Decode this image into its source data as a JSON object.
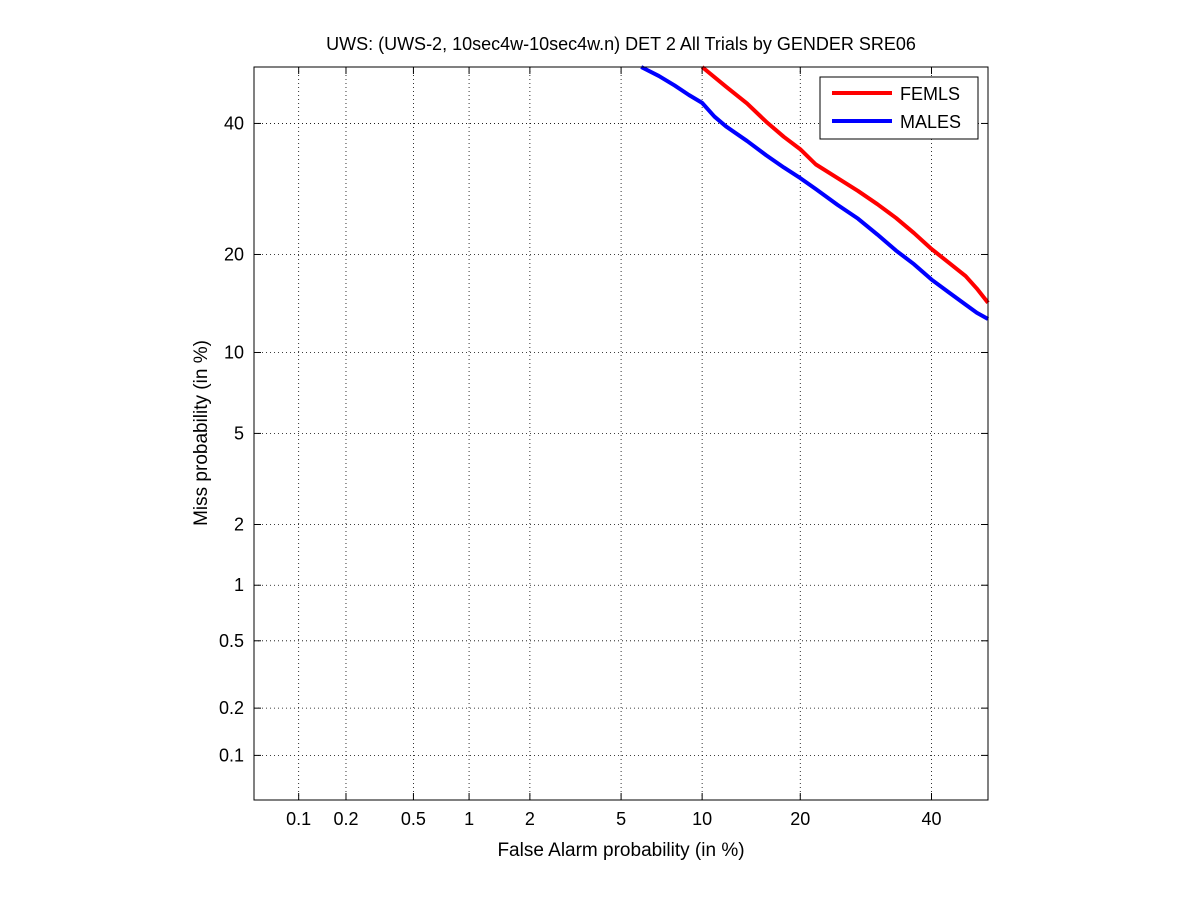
{
  "chart_data": {
    "type": "line",
    "title": "UWS: (UWS-2, 10sec4w-10sec4w.n) DET 2 All Trials by GENDER SRE06",
    "xlabel": "False Alarm probability (in %)",
    "ylabel": "Miss probability (in %)",
    "x_scale": "normal-deviate",
    "y_scale": "normal-deviate",
    "xlim": [
      0.05,
      50
    ],
    "ylim": [
      0.05,
      50
    ],
    "x_ticks": [
      0.1,
      0.2,
      0.5,
      1,
      2,
      5,
      10,
      20,
      40
    ],
    "x_tick_labels": [
      "0.1",
      "0.2",
      "0.5",
      "1",
      "2",
      "5",
      "10",
      "20",
      "40"
    ],
    "y_ticks": [
      0.1,
      0.2,
      0.5,
      1,
      2,
      5,
      10,
      20,
      40
    ],
    "y_tick_labels": [
      "0.1",
      "0.2",
      "0.5",
      "1",
      "2",
      "5",
      "10",
      "20",
      "40"
    ],
    "grid": true,
    "legend_position": "top-right",
    "series": [
      {
        "name": "FEMLS",
        "color": "#ff0000",
        "x": [
          10,
          12,
          14,
          16,
          18,
          20,
          22,
          25,
          28,
          31,
          34,
          37,
          40,
          43,
          46,
          48,
          50
        ],
        "y": [
          50,
          46.5,
          43.5,
          40.3,
          37.7,
          35.6,
          33.1,
          30.9,
          28.9,
          26.9,
          24.9,
          22.8,
          20.7,
          19.0,
          17.4,
          16.0,
          14.5
        ]
      },
      {
        "name": "MALES",
        "color": "#0000ff",
        "x": [
          6,
          7,
          8,
          9,
          10,
          11,
          12,
          14,
          16,
          18,
          20,
          22,
          25,
          28,
          31,
          34,
          37,
          40,
          43,
          46,
          48,
          50
        ],
        "y": [
          50,
          48.4,
          46.7,
          45.0,
          43.6,
          41.2,
          39.5,
          37.0,
          34.6,
          32.6,
          30.9,
          29.2,
          26.8,
          24.8,
          22.6,
          20.5,
          18.8,
          17.0,
          15.6,
          14.3,
          13.5,
          12.9
        ]
      }
    ]
  }
}
